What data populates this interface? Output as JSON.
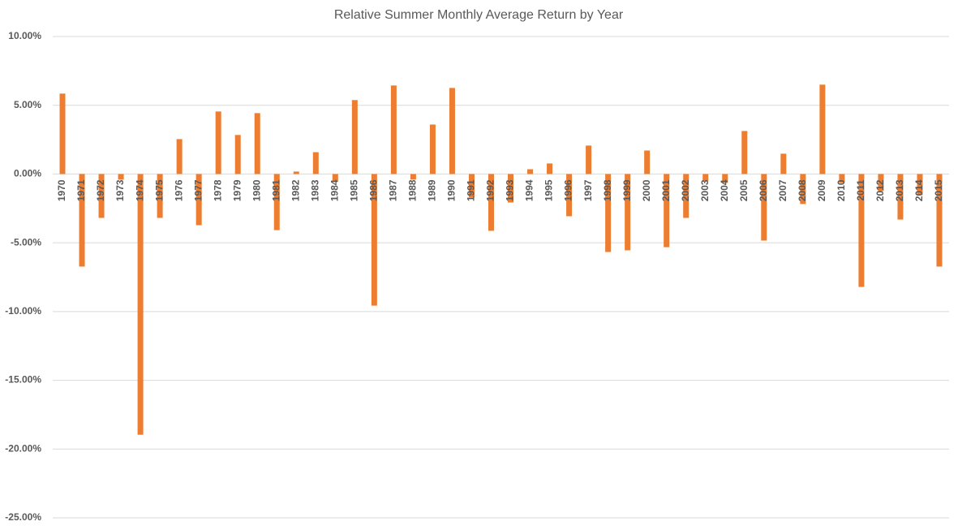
{
  "chart_data": {
    "type": "bar",
    "title": "Relative Summer Monthly Average Return by Year",
    "categories": [
      "1970",
      "1971",
      "1972",
      "1973",
      "1974",
      "1975",
      "1976",
      "1977",
      "1978",
      "1979",
      "1980",
      "1981",
      "1982",
      "1983",
      "1984",
      "1985",
      "1986",
      "1987",
      "1988",
      "1989",
      "1990",
      "1991",
      "1992",
      "1993",
      "1994",
      "1995",
      "1996",
      "1997",
      "1998",
      "1999",
      "2000",
      "2001",
      "2002",
      "2003",
      "2004",
      "2005",
      "2006",
      "2007",
      "2008",
      "2009",
      "2010",
      "2011",
      "2012",
      "2013",
      "2014",
      "2015"
    ],
    "values": [
      5.85,
      -6.73,
      -3.19,
      -0.41,
      -18.96,
      -3.19,
      2.54,
      -3.72,
      4.55,
      2.84,
      4.43,
      -4.08,
      0.18,
      1.59,
      -0.5,
      5.38,
      -9.57,
      6.44,
      -0.4,
      3.6,
      6.26,
      -1.7,
      -4.13,
      -2.07,
      0.35,
      0.77,
      -3.07,
      2.07,
      -5.67,
      -5.55,
      1.71,
      -5.32,
      -3.19,
      -0.5,
      -0.65,
      3.13,
      -4.84,
      1.48,
      -2.18,
      6.5,
      -0.65,
      -8.21,
      -1.24,
      -3.31,
      -1.54,
      -6.73
    ],
    "color": "#ed7d31",
    "ylim": [
      -25,
      10
    ],
    "yticks": [
      {
        "value": -25,
        "label": "-25.00%"
      },
      {
        "value": -20,
        "label": "-20.00%"
      },
      {
        "value": -15,
        "label": "-15.00%"
      },
      {
        "value": -10,
        "label": "-10.00%"
      },
      {
        "value": -5,
        "label": "-5.00%"
      },
      {
        "value": 0,
        "label": "0.00%"
      },
      {
        "value": 5,
        "label": "5.00%"
      },
      {
        "value": 10,
        "label": "10.00%"
      }
    ],
    "grid": true
  }
}
